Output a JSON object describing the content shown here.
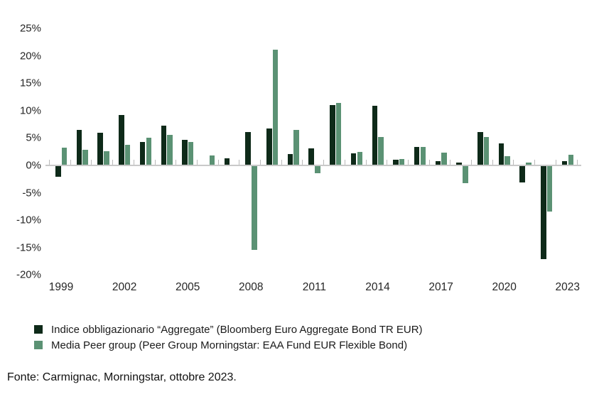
{
  "chart_data": {
    "type": "bar",
    "title": "",
    "xlabel": "",
    "ylabel": "",
    "grid": false,
    "legend_position": "bottom-left",
    "ylim": [
      -20,
      25
    ],
    "years": [
      1999,
      2000,
      2001,
      2002,
      2003,
      2004,
      2005,
      2006,
      2007,
      2008,
      2009,
      2010,
      2011,
      2012,
      2013,
      2014,
      2015,
      2016,
      2017,
      2018,
      2019,
      2020,
      2021,
      2022,
      2023
    ],
    "x_tick_labels": [
      "1999",
      "2002",
      "2005",
      "2008",
      "2011",
      "2014",
      "2017",
      "2020",
      "2023"
    ],
    "y_ticks": [
      {
        "label": "25%",
        "value": 25
      },
      {
        "label": "20%",
        "value": 20
      },
      {
        "label": "15%",
        "value": 15
      },
      {
        "label": "10%",
        "value": 10
      },
      {
        "label": "5%",
        "value": 5
      },
      {
        "label": "0%",
        "value": 0
      },
      {
        "label": "-5%",
        "value": -5
      },
      {
        "label": "-10%",
        "value": -10
      },
      {
        "label": "-15%",
        "value": -15
      },
      {
        "label": "-20%",
        "value": -20
      }
    ],
    "series": [
      {
        "name": "Indice obbligazionario “Aggregate” (Bloomberg Euro Aggregate Bond TR EUR)",
        "color": "#0e2a19",
        "values": [
          -2.0,
          6.4,
          5.8,
          9.1,
          4.2,
          7.1,
          4.5,
          0.0,
          1.2,
          6.0,
          6.6,
          2.0,
          3.0,
          10.9,
          2.1,
          10.8,
          0.9,
          3.2,
          0.6,
          0.4,
          5.9,
          3.9,
          -3.0,
          -17.0,
          0.7
        ]
      },
      {
        "name": "Media Peer group (Peer Group Morningstar: EAA Fund EUR Flexible Bond)",
        "color": "#5b9274",
        "values": [
          3.1,
          2.7,
          2.4,
          3.6,
          4.9,
          5.4,
          4.1,
          1.7,
          0.0,
          -15.3,
          21.0,
          6.4,
          -1.4,
          11.3,
          2.3,
          5.0,
          1.0,
          3.3,
          2.2,
          -3.2,
          5.1,
          1.6,
          0.4,
          -8.4,
          1.8
        ]
      }
    ]
  },
  "source": "Fonte: Carmignac, Morningstar, ottobre 2023."
}
